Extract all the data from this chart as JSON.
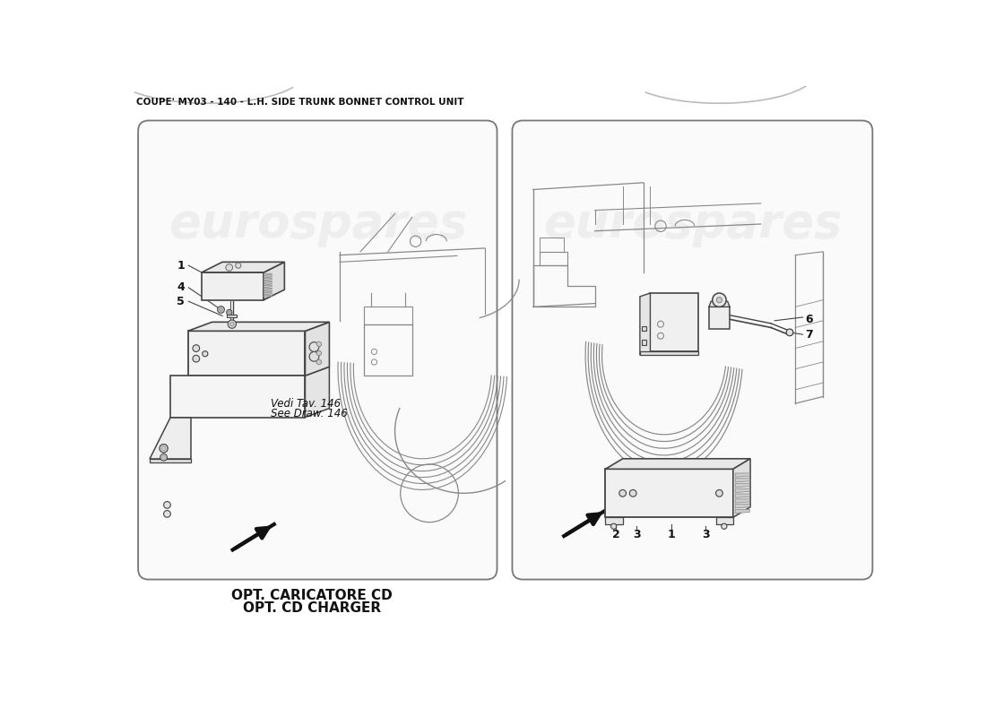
{
  "title": "COUPE' MY03 - 140 - L.H. SIDE TRUNK BONNET CONTROL UNIT",
  "title_fontsize": 7.5,
  "background_color": "#ffffff",
  "watermark_text": "eurospares",
  "watermark_color": "#cccccc",
  "left_panel_label1": "Vedi Tav. 146",
  "left_panel_label2": "See Draw. 146",
  "bottom_label1": "OPT. CARICATORE CD",
  "bottom_label2": "OPT. CD CHARGER",
  "line_color": "#444444",
  "light_line_color": "#888888",
  "panel_edge_color": "#777777",
  "panel_face_color": "#fafafa"
}
